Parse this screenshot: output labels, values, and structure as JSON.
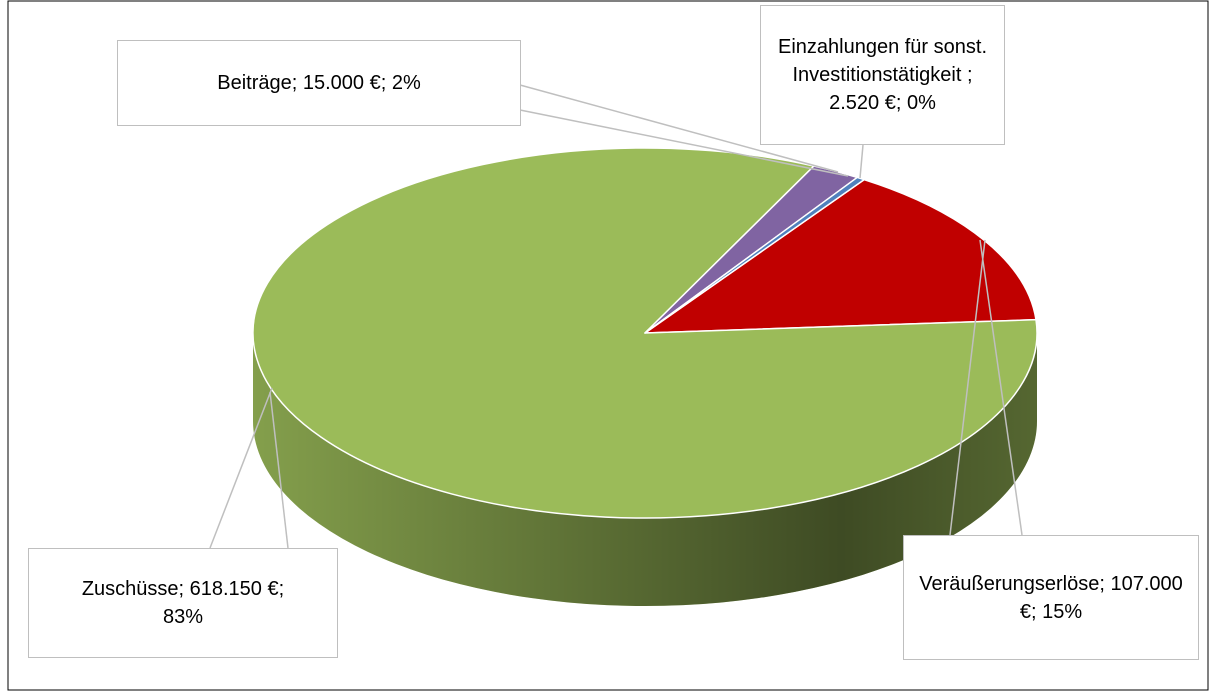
{
  "chart_data": {
    "type": "pie",
    "values": [
      107000,
      618150,
      15000,
      2520
    ],
    "value_labels": [
      "Veräußerungserlöse; 107.000 €; 15%",
      "Zuschüsse; 618.150 €; 83%",
      "Beiträge; 15.000 €; 2%",
      "Einzahlungen für sonst. Investitionstätigkeit ; 2.520 €; 0%"
    ],
    "colors": [
      "#c00000",
      "#9bbb59",
      "#8064a2",
      "#4f81bd"
    ]
  }
}
